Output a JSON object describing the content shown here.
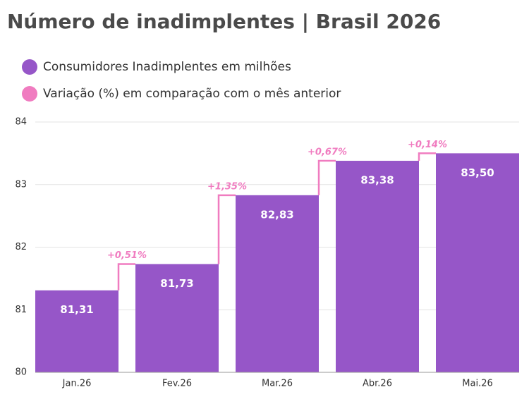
{
  "chart_data": {
    "type": "bar",
    "title": "Número de inadimplentes | Brasil 2026",
    "categories": [
      "Jan.26",
      "Fev.26",
      "Mar.26",
      "Abr.26",
      "Mai.26"
    ],
    "series": [
      {
        "name": "Consumidores Inadimplentes em milhões",
        "color": "#9656c8",
        "values": [
          81.31,
          81.73,
          82.83,
          83.38,
          83.5
        ],
        "value_labels": [
          "81,31",
          "81,73",
          "82,83",
          "83,38",
          "83,50"
        ]
      },
      {
        "name": "Variação (%) em comparação com o mês anterior",
        "color": "#f07cc0",
        "values": [
          null,
          0.51,
          1.35,
          0.67,
          0.14
        ],
        "value_labels": [
          null,
          "+0,51%",
          "+1,35%",
          "+0,67%",
          "+0,14%"
        ]
      }
    ],
    "ylim": [
      80,
      84
    ],
    "yticks": [
      80,
      81,
      82,
      83,
      84
    ],
    "grid": true
  }
}
